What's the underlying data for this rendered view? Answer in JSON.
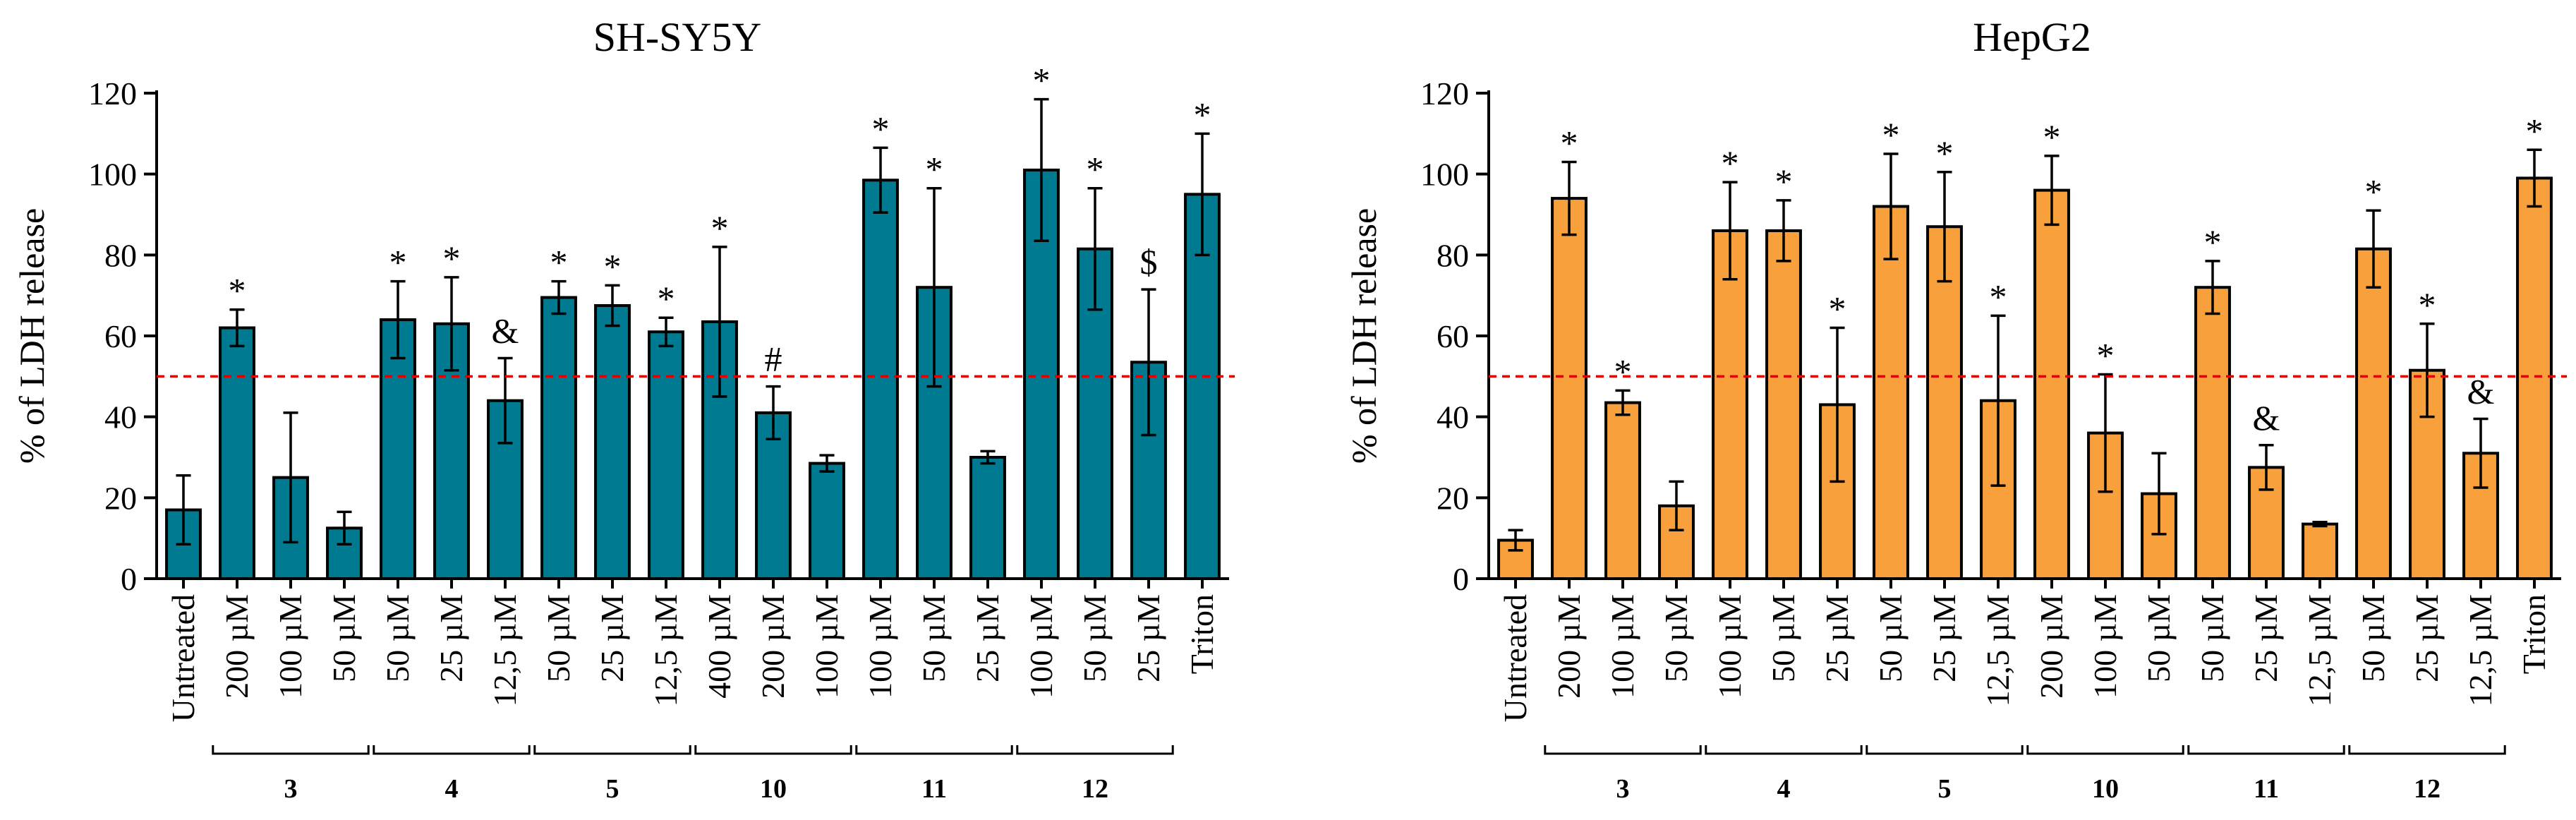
{
  "chart_data": [
    {
      "type": "bar",
      "title": "SH-SY5Y",
      "xlabel": "",
      "ylabel": "% of LDH release",
      "ylim": [
        0,
        120
      ],
      "yticks": [
        0,
        20,
        40,
        60,
        80,
        100,
        120
      ],
      "grid": false,
      "bar_color": "#007a91",
      "reference_line": {
        "y": 50,
        "color": "#e00000",
        "style": "dashed"
      },
      "categories": [
        "Untreated",
        "200 µM",
        "100 µM",
        "50 µM",
        "50 µM",
        "25 µM",
        "12,5 µM",
        "50 µM",
        "25 µM",
        "12,5 µM",
        "400 µM",
        "200 µM",
        "100 µM",
        "100 µM",
        "50 µM",
        "25 µM",
        "100 µM",
        "50 µM",
        "25 µM",
        "Triton"
      ],
      "values": [
        17,
        62,
        25,
        12.5,
        64,
        63,
        44,
        69.5,
        67.5,
        61,
        63.5,
        41,
        28.5,
        98.5,
        72,
        30,
        101,
        81.5,
        53.5,
        95
      ],
      "errors": [
        8.5,
        4.5,
        16,
        4,
        9.5,
        11.5,
        10.5,
        4,
        5,
        3.5,
        18.5,
        6.5,
        2,
        8,
        24.5,
        1.5,
        17.5,
        15,
        18,
        15
      ],
      "annotations": [
        "",
        "*",
        "",
        "",
        "*",
        "*",
        "&",
        "*",
        "*",
        "*",
        "*",
        "#",
        "",
        "*",
        "*",
        "",
        "*",
        "*",
        "$",
        "*"
      ],
      "groups": [
        {
          "label": "3",
          "start": 1,
          "end": 3
        },
        {
          "label": "4",
          "start": 4,
          "end": 6
        },
        {
          "label": "5",
          "start": 7,
          "end": 9
        },
        {
          "label": "10",
          "start": 10,
          "end": 12
        },
        {
          "label": "11",
          "start": 13,
          "end": 15
        },
        {
          "label": "12",
          "start": 16,
          "end": 18
        }
      ]
    },
    {
      "type": "bar",
      "title": "HepG2",
      "xlabel": "",
      "ylabel": "% of LDH release",
      "ylim": [
        0,
        120
      ],
      "yticks": [
        0,
        20,
        40,
        60,
        80,
        100,
        120
      ],
      "grid": false,
      "bar_color": "#f7a03c",
      "reference_line": {
        "y": 50,
        "color": "#e00000",
        "style": "dashed"
      },
      "categories": [
        "Untreated",
        "200 µM",
        "100 µM",
        "50 µM",
        "100 µM",
        "50 µM",
        "25 µM",
        "50 µM",
        "25 µM",
        "12,5 µM",
        "200 µM",
        "100 µM",
        "50 µM",
        "50 µM",
        "25 µM",
        "12,5 µM",
        "50 µM",
        "25 µM",
        "12,5 µM",
        "Triton"
      ],
      "values": [
        9.5,
        94,
        43.5,
        18,
        86,
        86,
        43,
        92,
        87,
        44,
        96,
        36,
        21,
        72,
        27.5,
        13.5,
        81.5,
        51.5,
        31,
        99
      ],
      "errors": [
        2.5,
        9,
        3,
        6,
        12,
        7.5,
        19,
        13,
        13.5,
        21,
        8.5,
        14.5,
        10,
        6.5,
        5.5,
        0.5,
        9.5,
        11.5,
        8.5,
        7
      ],
      "annotations": [
        "",
        "*",
        "*",
        "",
        "*",
        "*",
        "*",
        "*",
        "*",
        "*",
        "*",
        "*",
        "",
        "*",
        "&",
        "",
        "*",
        "*",
        "&",
        "*"
      ],
      "groups": [
        {
          "label": "3",
          "start": 1,
          "end": 3
        },
        {
          "label": "4",
          "start": 4,
          "end": 6
        },
        {
          "label": "5",
          "start": 7,
          "end": 9
        },
        {
          "label": "10",
          "start": 10,
          "end": 12
        },
        {
          "label": "11",
          "start": 13,
          "end": 15
        },
        {
          "label": "12",
          "start": 16,
          "end": 18
        }
      ]
    }
  ]
}
